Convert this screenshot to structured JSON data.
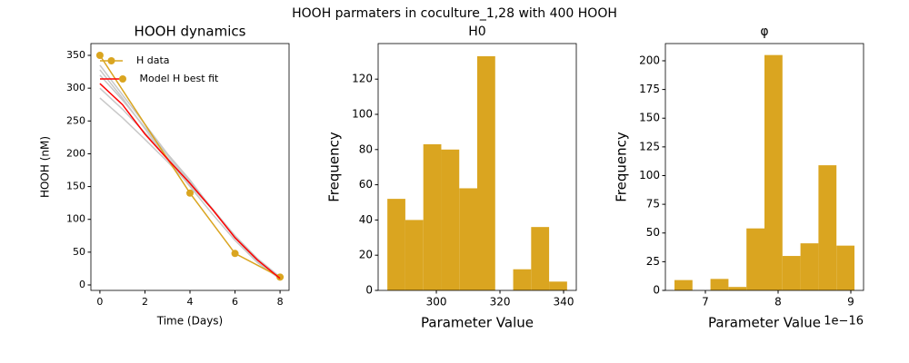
{
  "suptitle": "HOOH parmaters in coculture_1,28 with 400 HOOH",
  "chart_data": [
    {
      "type": "line",
      "title": "HOOH dynamics",
      "xlabel": "Time (Days)",
      "ylabel": "HOOH (nM)",
      "xlim": [
        -0.4,
        8.4
      ],
      "xticks": [
        0,
        2,
        4,
        6,
        8
      ],
      "ylim": [
        -8.3,
        368
      ],
      "yticks": [
        0,
        50,
        100,
        150,
        200,
        250,
        300,
        350
      ],
      "legend": "upper left",
      "series": [
        {
          "color": "#c8c8c8",
          "x": [
            0,
            1,
            2,
            3,
            4,
            5,
            6,
            7,
            8
          ],
          "values": [
            335,
            290,
            245,
            200,
            160,
            115,
            72,
            35,
            10
          ]
        },
        {
          "color": "#c8c8c8",
          "x": [
            0,
            1,
            2,
            3,
            4,
            5,
            6,
            7,
            8
          ],
          "values": [
            320,
            282,
            240,
            198,
            158,
            116,
            74,
            38,
            11
          ]
        },
        {
          "color": "#c8c8c8",
          "x": [
            0,
            1,
            2,
            3,
            4,
            5,
            6,
            7,
            8
          ],
          "values": [
            300,
            268,
            232,
            194,
            156,
            116,
            75,
            40,
            12
          ]
        },
        {
          "color": "#c8c8c8",
          "x": [
            0,
            1,
            2,
            3,
            4,
            5,
            6,
            7,
            8
          ],
          "values": [
            285,
            255,
            222,
            188,
            152,
            115,
            75,
            40,
            12
          ]
        },
        {
          "color": "#c8c8c8",
          "x": [
            0,
            1,
            2,
            3,
            4,
            5,
            6,
            7,
            8
          ],
          "values": [
            328,
            285,
            238,
            192,
            150,
            108,
            68,
            34,
            9
          ]
        },
        {
          "name": "H data",
          "color": "#daa520",
          "marker": "o",
          "x": [
            0,
            4,
            6,
            8
          ],
          "values": [
            350,
            140,
            48,
            12
          ]
        },
        {
          "name": " Model H best fit",
          "color": "#ff0000",
          "x": [
            0,
            1,
            2,
            3,
            4,
            5,
            6,
            7,
            8
          ],
          "values": [
            307,
            275,
            230,
            192,
            155,
            115,
            72,
            38,
            10
          ]
        }
      ]
    },
    {
      "type": "histogram",
      "title": "H0",
      "xlabel": "Parameter Value",
      "ylabel": "Frequency",
      "color": "#daa520",
      "xlim": [
        281.7,
        344
      ],
      "xticks": [
        300,
        320,
        340
      ],
      "ylim": [
        0,
        140.2
      ],
      "yticks": [
        0,
        20,
        40,
        60,
        80,
        100,
        120
      ],
      "bins": [
        284.6,
        290.25,
        295.9,
        301.55,
        307.2,
        312.85,
        318.5,
        324.15,
        329.8,
        335.45,
        341.1
      ],
      "values": [
        52,
        40,
        83,
        80,
        58,
        133,
        0,
        12,
        36,
        5
      ]
    },
    {
      "type": "histogram",
      "title": "φ",
      "xlabel": "Parameter Value",
      "ylabel": "Frequency",
      "color": "#daa520",
      "x_offset_label": "1e−16",
      "xlim": [
        6.45,
        9.175
      ],
      "xticks": [
        7,
        8,
        9
      ],
      "ylim": [
        0,
        215
      ],
      "yticks": [
        0,
        25,
        50,
        75,
        100,
        125,
        150,
        175,
        200
      ],
      "bins": [
        6.575,
        6.8225,
        7.07,
        7.3175,
        7.565,
        7.8125,
        8.06,
        8.3075,
        8.555,
        8.8025,
        9.05
      ],
      "values": [
        9,
        0,
        10,
        3,
        54,
        205,
        30,
        41,
        109,
        39
      ]
    }
  ]
}
